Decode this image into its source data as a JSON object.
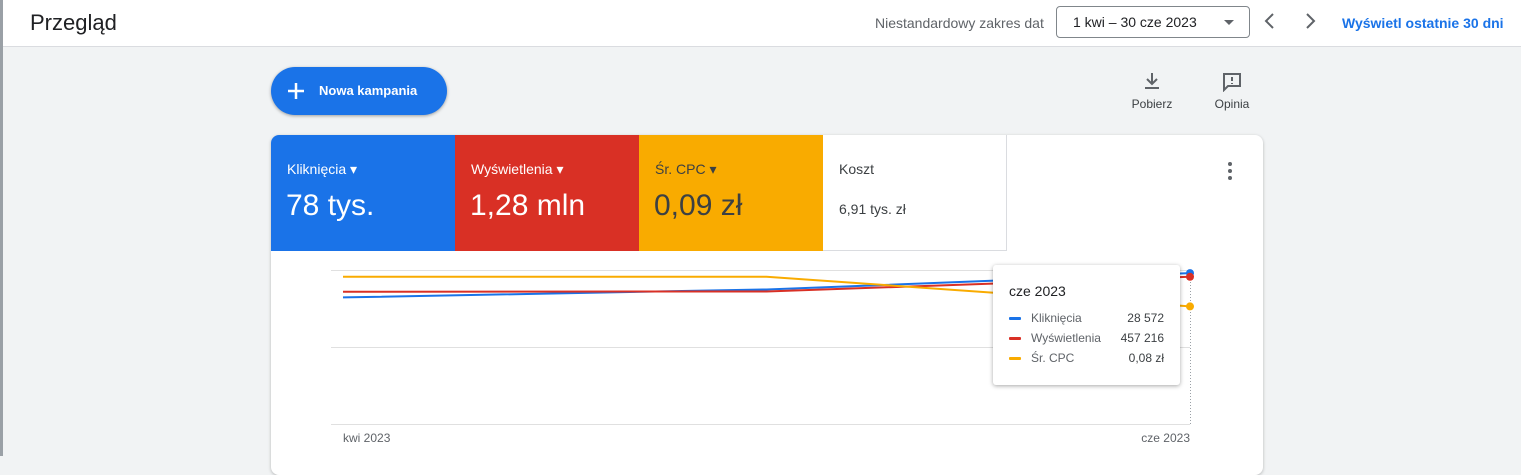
{
  "header": {
    "title": "Przegląd",
    "date_label": "Niestandardowy zakres dat",
    "date_range": "1 kwi – 30 cze 2023",
    "last30": "Wyświetl ostatnie 30 dni"
  },
  "actions": {
    "new_campaign": "Nowa kampania",
    "download": "Pobierz",
    "feedback": "Opinia"
  },
  "metrics": [
    {
      "label": "Kliknięcia",
      "value": "78 tys.",
      "color": "#1a73e8"
    },
    {
      "label": "Wyświetlenia",
      "value": "1,28 mln",
      "color": "#d93025"
    },
    {
      "label": "Śr. CPC",
      "value": "0,09 zł",
      "color": "#f9ab00"
    },
    {
      "label": "Koszt",
      "value": "6,91 tys. zł",
      "color": "#ffffff"
    }
  ],
  "chart_data": {
    "type": "line",
    "x": [
      "kwi 2023",
      null,
      "cze 2023"
    ],
    "series": [
      {
        "name": "Kliknięcia",
        "color": "#1a73e8",
        "values": [
          24000,
          25500,
          28572
        ]
      },
      {
        "name": "Wyświetlenia",
        "color": "#d93025",
        "values": [
          411000,
          412000,
          457216
        ]
      },
      {
        "name": "Śr. CPC",
        "color": "#f9ab00",
        "values": [
          0.1,
          0.1,
          0.08
        ]
      }
    ]
  },
  "tooltip": {
    "title": "cze 2023",
    "values": [
      "28 572",
      "457 216",
      "0,08 zł"
    ]
  }
}
